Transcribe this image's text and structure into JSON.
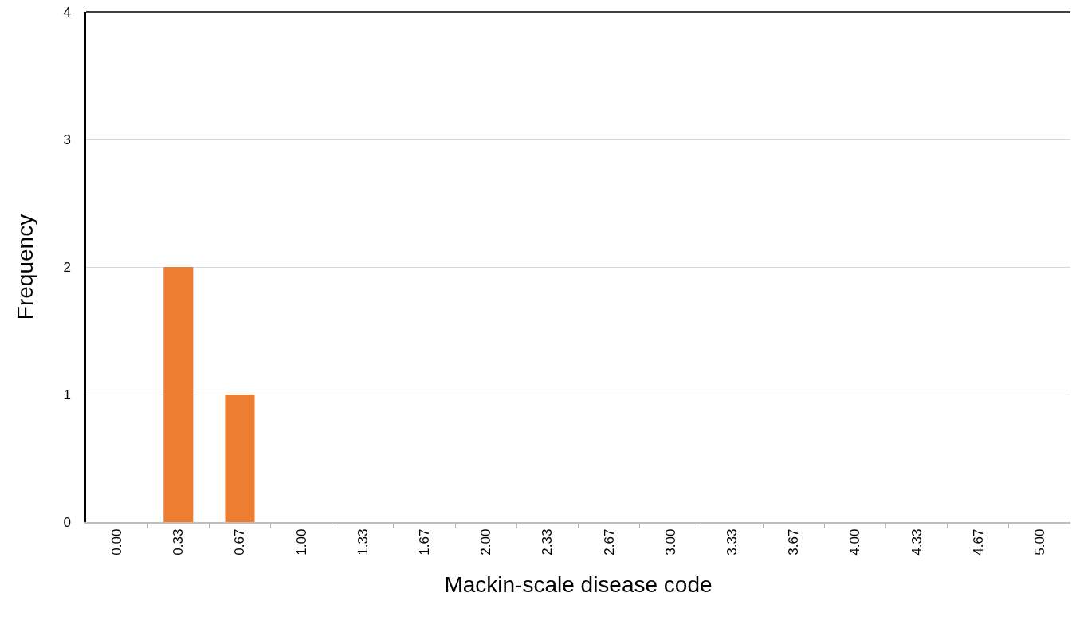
{
  "chart_data": {
    "type": "bar",
    "xlabel": "Mackin-scale disease code",
    "ylabel": "Frequency",
    "categories": [
      "0.00",
      "0.33",
      "0.67",
      "1.00",
      "1.33",
      "1.67",
      "2.00",
      "2.33",
      "2.67",
      "3.00",
      "3.33",
      "3.67",
      "4.00",
      "4.33",
      "4.67",
      "5.00"
    ],
    "values": [
      0,
      2,
      1,
      0,
      0,
      0,
      0,
      0,
      0,
      0,
      0,
      0,
      0,
      0,
      0,
      0
    ],
    "color": "#ed7d31",
    "ylim": [
      0,
      4
    ],
    "yticks": [
      0,
      1,
      2,
      3,
      4
    ],
    "grid": "y"
  }
}
